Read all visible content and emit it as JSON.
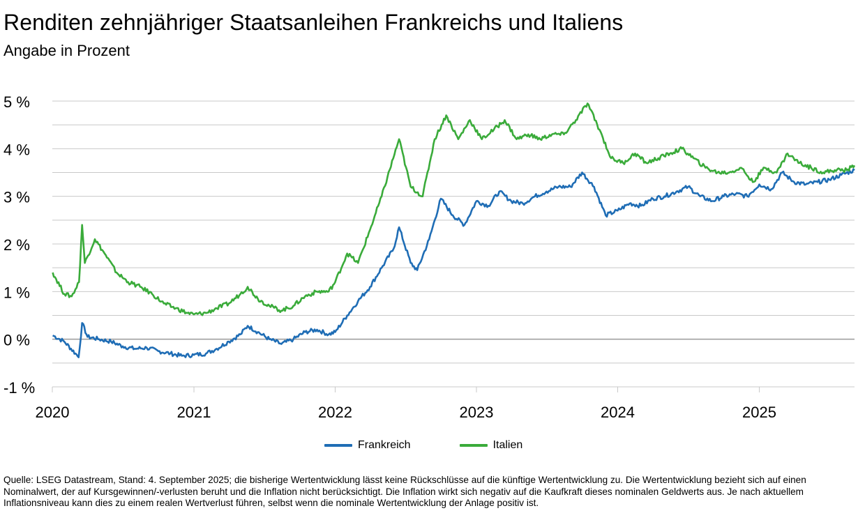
{
  "title": "Renditen zehnjähriger Staatsanleihen Frankreichs und Italiens",
  "subtitle": "Angabe in Prozent",
  "source": "Quelle: LSEG Datastream, Stand: 4. September 2025; die bisherige Wertentwicklung lässt keine Rückschlüsse auf die künftige Wertentwicklung zu. Die Wertentwicklung bezieht sich auf einen Nominalwert, der auf Kursgewinnen/-verlusten beruht und die Inflation nicht berücksichtigt. Die Inflation wirkt sich negativ auf die Kaufkraft dieses nominalen Geldwerts aus. Je nach aktuellem Inflationsniveau kann dies zu einem realen Wertverlust führen, selbst wenn die nominale Wertentwicklung der Anlage positiv ist.",
  "colors": {
    "frankreich": "#1f6db5",
    "italien": "#3aab3a",
    "grid": "#c8c8c8",
    "zero": "#999999"
  },
  "chart_data": {
    "type": "line",
    "title": "Renditen zehnjähriger Staatsanleihen Frankreichs und Italiens",
    "subtitle": "Angabe in Prozent",
    "ylim": [
      -1,
      5
    ],
    "yticks": [
      -1,
      0,
      1,
      2,
      3,
      4,
      5
    ],
    "ytick_labels": [
      "-1 %",
      "0 %",
      "1 %",
      "2 %",
      "3 %",
      "4 %",
      "5 %"
    ],
    "xlim": [
      "2020-01-01",
      "2025-09-04"
    ],
    "xticks": [
      "2020-01-01",
      "2021-01-01",
      "2022-01-01",
      "2023-01-01",
      "2024-01-01",
      "2025-01-01"
    ],
    "xtick_labels": [
      "2020",
      "2021",
      "2022",
      "2023",
      "2024",
      "2025"
    ],
    "grid": true,
    "legend_position": "bottom-center",
    "series": [
      {
        "name": "Frankreich",
        "color": "#1f6db5",
        "points": [
          [
            "2020-01-02",
            0.08
          ],
          [
            "2020-02-01",
            -0.05
          ],
          [
            "2020-03-01",
            -0.3
          ],
          [
            "2020-03-09",
            -0.38
          ],
          [
            "2020-03-18",
            0.34
          ],
          [
            "2020-04-01",
            0.05
          ],
          [
            "2020-05-01",
            0.0
          ],
          [
            "2020-06-01",
            -0.05
          ],
          [
            "2020-07-01",
            -0.15
          ],
          [
            "2020-08-01",
            -0.2
          ],
          [
            "2020-09-01",
            -0.18
          ],
          [
            "2020-10-01",
            -0.25
          ],
          [
            "2020-11-01",
            -0.3
          ],
          [
            "2020-12-01",
            -0.35
          ],
          [
            "2021-01-01",
            -0.33
          ],
          [
            "2021-02-01",
            -0.3
          ],
          [
            "2021-03-01",
            -0.2
          ],
          [
            "2021-04-01",
            -0.05
          ],
          [
            "2021-05-01",
            0.1
          ],
          [
            "2021-05-20",
            0.28
          ],
          [
            "2021-06-15",
            0.15
          ],
          [
            "2021-07-15",
            0.0
          ],
          [
            "2021-08-15",
            -0.1
          ],
          [
            "2021-09-15",
            0.0
          ],
          [
            "2021-10-15",
            0.15
          ],
          [
            "2021-11-15",
            0.2
          ],
          [
            "2021-12-15",
            0.1
          ],
          [
            "2022-01-01",
            0.15
          ],
          [
            "2022-02-01",
            0.5
          ],
          [
            "2022-03-01",
            0.8
          ],
          [
            "2022-04-01",
            1.1
          ],
          [
            "2022-05-01",
            1.5
          ],
          [
            "2022-06-01",
            1.9
          ],
          [
            "2022-06-15",
            2.35
          ],
          [
            "2022-07-15",
            1.6
          ],
          [
            "2022-08-01",
            1.45
          ],
          [
            "2022-09-01",
            2.1
          ],
          [
            "2022-10-01",
            2.95
          ],
          [
            "2022-11-01",
            2.6
          ],
          [
            "2022-12-01",
            2.4
          ],
          [
            "2023-01-01",
            2.9
          ],
          [
            "2023-02-01",
            2.8
          ],
          [
            "2023-03-01",
            3.1
          ],
          [
            "2023-04-01",
            2.9
          ],
          [
            "2023-05-01",
            2.85
          ],
          [
            "2023-06-01",
            3.0
          ],
          [
            "2023-07-01",
            3.1
          ],
          [
            "2023-08-01",
            3.2
          ],
          [
            "2023-09-01",
            3.2
          ],
          [
            "2023-10-01",
            3.5
          ],
          [
            "2023-11-01",
            3.2
          ],
          [
            "2023-12-01",
            2.6
          ],
          [
            "2024-01-01",
            2.7
          ],
          [
            "2024-02-01",
            2.85
          ],
          [
            "2024-03-01",
            2.8
          ],
          [
            "2024-04-01",
            2.95
          ],
          [
            "2024-05-01",
            3.0
          ],
          [
            "2024-06-01",
            3.1
          ],
          [
            "2024-07-01",
            3.2
          ],
          [
            "2024-08-01",
            3.0
          ],
          [
            "2024-09-01",
            2.9
          ],
          [
            "2024-10-01",
            3.0
          ],
          [
            "2024-11-01",
            3.05
          ],
          [
            "2024-12-01",
            3.0
          ],
          [
            "2025-01-01",
            3.25
          ],
          [
            "2025-02-01",
            3.15
          ],
          [
            "2025-03-01",
            3.5
          ],
          [
            "2025-04-01",
            3.3
          ],
          [
            "2025-05-01",
            3.25
          ],
          [
            "2025-06-01",
            3.3
          ],
          [
            "2025-07-01",
            3.35
          ],
          [
            "2025-08-01",
            3.45
          ],
          [
            "2025-09-04",
            3.55
          ]
        ]
      },
      {
        "name": "Italien",
        "color": "#3aab3a",
        "points": [
          [
            "2020-01-02",
            1.4
          ],
          [
            "2020-02-01",
            0.95
          ],
          [
            "2020-02-20",
            0.9
          ],
          [
            "2020-03-10",
            1.2
          ],
          [
            "2020-03-18",
            2.4
          ],
          [
            "2020-03-25",
            1.6
          ],
          [
            "2020-04-20",
            2.1
          ],
          [
            "2020-05-15",
            1.8
          ],
          [
            "2020-06-15",
            1.4
          ],
          [
            "2020-07-15",
            1.2
          ],
          [
            "2020-08-15",
            1.1
          ],
          [
            "2020-09-15",
            0.95
          ],
          [
            "2020-10-15",
            0.75
          ],
          [
            "2020-11-15",
            0.65
          ],
          [
            "2020-12-15",
            0.55
          ],
          [
            "2021-01-01",
            0.52
          ],
          [
            "2021-02-01",
            0.55
          ],
          [
            "2021-03-01",
            0.65
          ],
          [
            "2021-04-01",
            0.75
          ],
          [
            "2021-05-01",
            0.95
          ],
          [
            "2021-05-20",
            1.1
          ],
          [
            "2021-06-15",
            0.85
          ],
          [
            "2021-07-15",
            0.7
          ],
          [
            "2021-08-15",
            0.6
          ],
          [
            "2021-09-15",
            0.7
          ],
          [
            "2021-10-15",
            0.9
          ],
          [
            "2021-11-15",
            1.0
          ],
          [
            "2021-12-15",
            1.0
          ],
          [
            "2022-01-01",
            1.2
          ],
          [
            "2022-02-01",
            1.8
          ],
          [
            "2022-03-01",
            1.6
          ],
          [
            "2022-04-01",
            2.3
          ],
          [
            "2022-05-01",
            3.0
          ],
          [
            "2022-06-15",
            4.2
          ],
          [
            "2022-07-15",
            3.2
          ],
          [
            "2022-08-15",
            3.0
          ],
          [
            "2022-09-15",
            4.2
          ],
          [
            "2022-10-15",
            4.7
          ],
          [
            "2022-11-15",
            4.2
          ],
          [
            "2022-12-15",
            4.6
          ],
          [
            "2023-01-15",
            4.2
          ],
          [
            "2023-02-15",
            4.4
          ],
          [
            "2023-03-15",
            4.6
          ],
          [
            "2023-04-15",
            4.2
          ],
          [
            "2023-05-15",
            4.3
          ],
          [
            "2023-06-15",
            4.2
          ],
          [
            "2023-07-15",
            4.3
          ],
          [
            "2023-08-15",
            4.3
          ],
          [
            "2023-09-15",
            4.6
          ],
          [
            "2023-10-15",
            4.95
          ],
          [
            "2023-11-15",
            4.4
          ],
          [
            "2023-12-15",
            3.8
          ],
          [
            "2024-01-15",
            3.7
          ],
          [
            "2024-02-15",
            3.9
          ],
          [
            "2024-03-15",
            3.7
          ],
          [
            "2024-04-15",
            3.8
          ],
          [
            "2024-05-15",
            3.9
          ],
          [
            "2024-06-15",
            4.0
          ],
          [
            "2024-07-15",
            3.8
          ],
          [
            "2024-08-15",
            3.6
          ],
          [
            "2024-09-15",
            3.5
          ],
          [
            "2024-10-15",
            3.5
          ],
          [
            "2024-11-15",
            3.6
          ],
          [
            "2024-12-15",
            3.3
          ],
          [
            "2025-01-15",
            3.6
          ],
          [
            "2025-02-15",
            3.5
          ],
          [
            "2025-03-15",
            3.9
          ],
          [
            "2025-04-15",
            3.7
          ],
          [
            "2025-05-15",
            3.6
          ],
          [
            "2025-06-15",
            3.5
          ],
          [
            "2025-07-15",
            3.55
          ],
          [
            "2025-08-15",
            3.55
          ],
          [
            "2025-09-04",
            3.65
          ]
        ]
      }
    ]
  }
}
